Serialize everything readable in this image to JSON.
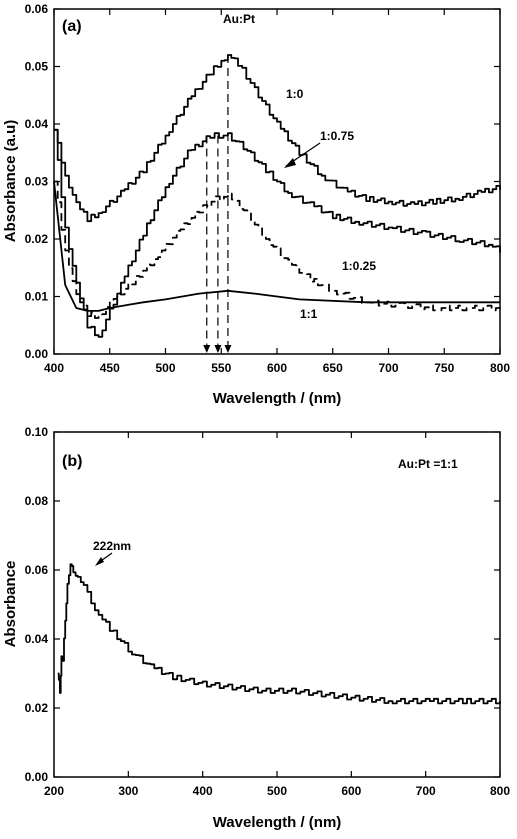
{
  "chart_data": [
    {
      "panel": "(a)",
      "type": "line",
      "xlabel": "Wavelength / (nm)",
      "ylabel": "Absorbance (a.u)",
      "xlim": [
        400,
        800
      ],
      "ylim": [
        0,
        0.06
      ],
      "xticks": [
        400,
        450,
        500,
        550,
        600,
        650,
        700,
        750,
        800
      ],
      "yticks": [
        "0.00",
        "0.01",
        "0.02",
        "0.03",
        "0.04",
        "0.05",
        "0.06"
      ],
      "legend_title": "Au:Pt",
      "series": [
        {
          "name": "1:0",
          "style": "step-solid",
          "x": [
            400,
            410,
            420,
            430,
            440,
            460,
            480,
            500,
            520,
            540,
            550,
            556,
            565,
            580,
            600,
            620,
            640,
            660,
            680,
            700,
            720,
            740,
            760,
            780,
            800
          ],
          "y": [
            0.039,
            0.031,
            0.026,
            0.0235,
            0.0245,
            0.028,
            0.032,
            0.038,
            0.044,
            0.049,
            0.051,
            0.052,
            0.0505,
            0.046,
            0.04,
            0.035,
            0.031,
            0.0285,
            0.027,
            0.0265,
            0.026,
            0.0265,
            0.027,
            0.028,
            0.029
          ]
        },
        {
          "name": "1:0.75",
          "style": "step-solid",
          "x": [
            400,
            410,
            420,
            430,
            440,
            460,
            480,
            500,
            520,
            540,
            556,
            570,
            590,
            610,
            630,
            650,
            670,
            700,
            730,
            760,
            790,
            800
          ],
          "y": [
            0.039,
            0.022,
            0.012,
            0.005,
            0.003,
            0.012,
            0.021,
            0.029,
            0.035,
            0.038,
            0.038,
            0.036,
            0.032,
            0.028,
            0.026,
            0.024,
            0.023,
            0.022,
            0.021,
            0.02,
            0.019,
            0.018
          ]
        },
        {
          "name": "1:0.25",
          "style": "step-dashed",
          "x": [
            400,
            410,
            420,
            430,
            440,
            450,
            470,
            490,
            510,
            530,
            545,
            556,
            570,
            590,
            610,
            630,
            650,
            680,
            710,
            740,
            770,
            800
          ],
          "y": [
            0.03,
            0.018,
            0.01,
            0.007,
            0.0065,
            0.009,
            0.0125,
            0.0165,
            0.021,
            0.025,
            0.027,
            0.0275,
            0.025,
            0.02,
            0.016,
            0.013,
            0.011,
            0.009,
            0.0085,
            0.008,
            0.008,
            0.008
          ]
        },
        {
          "name": "1:1",
          "style": "solid",
          "x": [
            400,
            410,
            420,
            430,
            440,
            450,
            465,
            480,
            500,
            530,
            556,
            580,
            620,
            680,
            740,
            800
          ],
          "y": [
            0.03,
            0.012,
            0.008,
            0.0075,
            0.0075,
            0.008,
            0.0085,
            0.009,
            0.0095,
            0.0105,
            0.011,
            0.0105,
            0.0095,
            0.009,
            0.009,
            0.009
          ]
        }
      ],
      "markers_x": [
        537,
        547,
        556
      ],
      "labels": {
        "s1": "1:0",
        "s2": "1:0.75",
        "s3": "1:0.25",
        "s4": "1:1"
      }
    },
    {
      "panel": "(b)",
      "type": "line",
      "xlabel": "Wavelength / (nm)",
      "ylabel": "Absorbance",
      "xlim": [
        200,
        800
      ],
      "ylim": [
        0,
        0.1
      ],
      "xticks": [
        200,
        300,
        400,
        500,
        600,
        700,
        800
      ],
      "yticks": [
        "0.00",
        "0.02",
        "0.04",
        "0.06",
        "0.08",
        "0.10"
      ],
      "legend_title": "Au:Pt =1:1",
      "peak_label": "222nm",
      "peak_x": 222,
      "peak_y": 0.061,
      "series": [
        {
          "name": "",
          "style": "step-solid",
          "x": [
            205,
            208,
            210,
            212,
            215,
            218,
            222,
            226,
            232,
            240,
            250,
            260,
            275,
            300,
            330,
            360,
            400,
            440,
            480,
            520,
            560,
            600,
            650,
            700,
            750,
            800
          ],
          "y": [
            0.03,
            0.025,
            0.035,
            0.033,
            0.046,
            0.056,
            0.061,
            0.06,
            0.058,
            0.055,
            0.051,
            0.047,
            0.043,
            0.037,
            0.032,
            0.029,
            0.027,
            0.026,
            0.025,
            0.025,
            0.024,
            0.023,
            0.022,
            0.022,
            0.022,
            0.022
          ]
        }
      ]
    }
  ]
}
